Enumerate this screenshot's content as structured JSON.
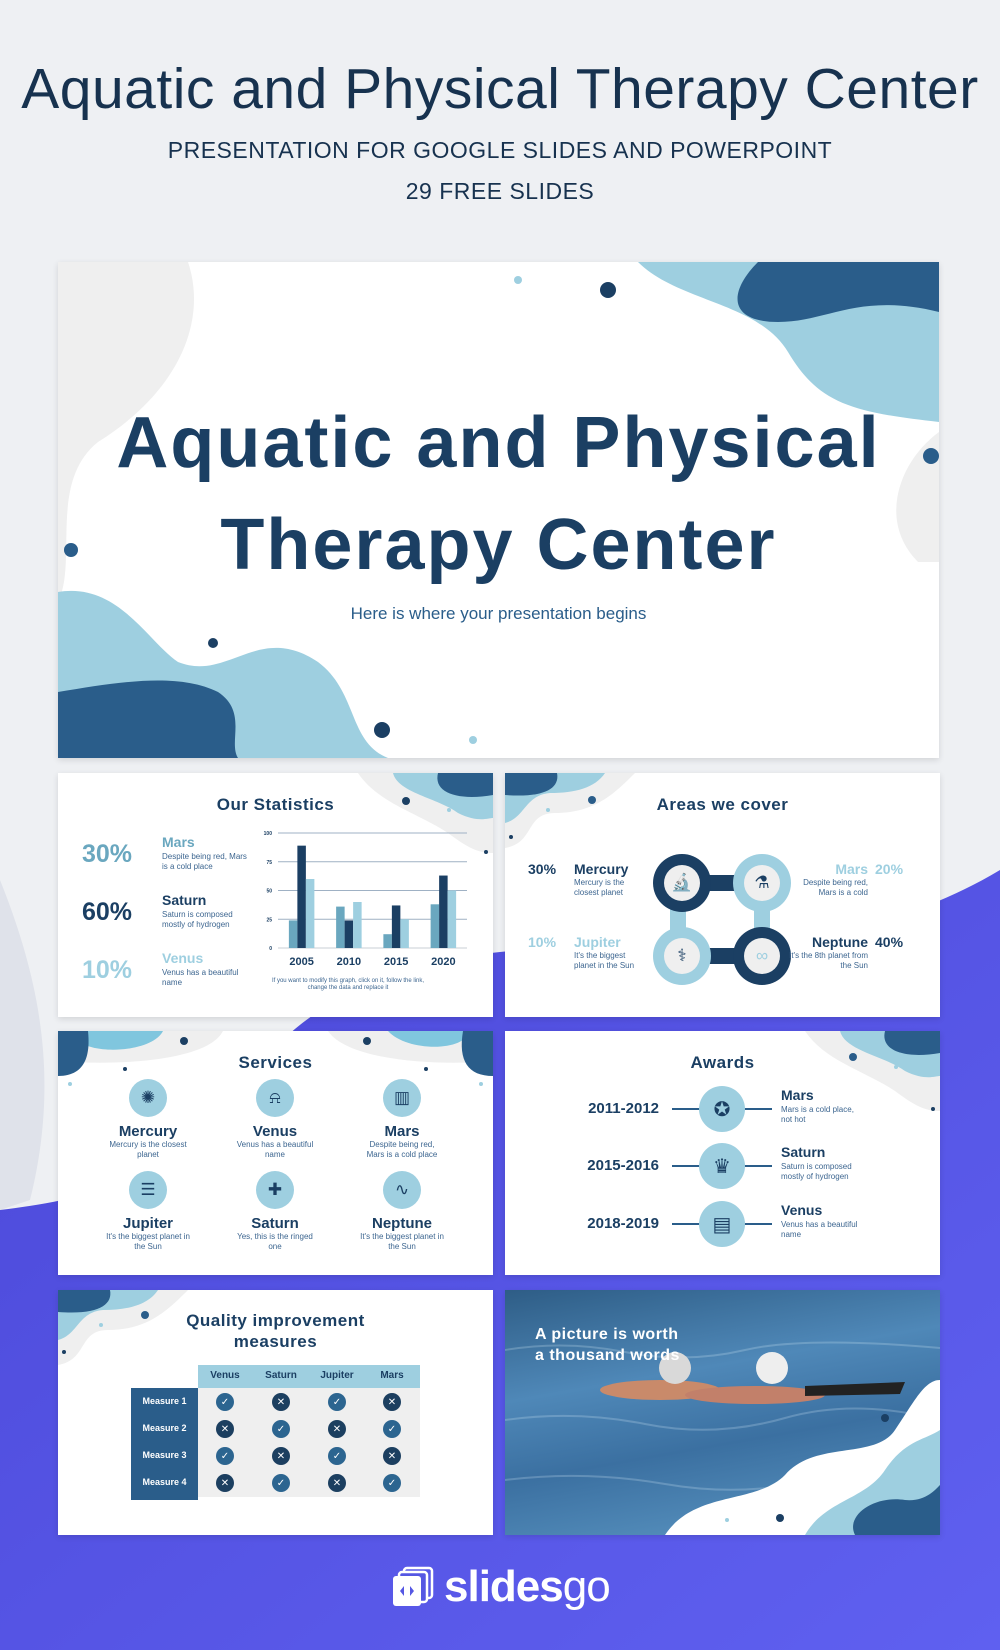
{
  "header": {
    "title": "Aquatic and Physical Therapy Center",
    "subtitle": "PRESENTATION FOR GOOGLE SLIDES AND POWERPOINT",
    "slide_count": "29 FREE SLIDES"
  },
  "colors": {
    "navy": "#1b3f63",
    "mid": "#2a5d8a",
    "teal": "#6aa7bf",
    "light": "#9ecfe0",
    "gray": "#efefef",
    "purple": "#5557e3"
  },
  "cover": {
    "title_line1": "Aquatic and Physical",
    "title_line2": "Therapy Center",
    "subtitle": "Here is where your presentation begins"
  },
  "statistics": {
    "title": "Our Statistics",
    "items": [
      {
        "percent": "30%",
        "name": "Mars",
        "desc": "Despite being red, Mars is a cold place",
        "color": "#6aa7bf"
      },
      {
        "percent": "60%",
        "name": "Saturn",
        "desc": "Saturn is composed mostly of hydrogen",
        "color": "#1b3f63"
      },
      {
        "percent": "10%",
        "name": "Venus",
        "desc": "Venus has a beautiful name",
        "color": "#9ecfe0"
      }
    ],
    "footnote": "If you want to modify this graph, click on it, follow the link, change the data and replace it"
  },
  "chart_data": {
    "type": "bar",
    "categories": [
      "2005",
      "2010",
      "2015",
      "2020"
    ],
    "series": [
      {
        "values": [
          24,
          36,
          12,
          38
        ],
        "color": "#6aa7bf"
      },
      {
        "values": [
          89,
          24,
          37,
          63
        ],
        "color": "#1b3f63"
      },
      {
        "values": [
          60,
          40,
          25,
          50
        ],
        "color": "#9ecfe0"
      }
    ],
    "yticks": [
      0,
      25,
      50,
      75,
      100
    ],
    "ylim": [
      0,
      100
    ],
    "grid": true
  },
  "areas": {
    "title": "Areas we cover",
    "items": [
      {
        "percent": "30%",
        "name": "Mercury",
        "desc": "Mercury is the closest planet",
        "icon": "microscope-icon"
      },
      {
        "percent": "20%",
        "name": "Mars",
        "desc": "Despite being red, Mars is a cold",
        "icon": "mortar-pestle-icon"
      },
      {
        "percent": "10%",
        "name": "Jupiter",
        "desc": "It's the biggest planet in the Sun",
        "icon": "caduceus-icon"
      },
      {
        "percent": "40%",
        "name": "Neptune",
        "desc": "It's the 8th planet from the Sun",
        "icon": "dna-icon"
      }
    ]
  },
  "services": {
    "title": "Services",
    "items": [
      {
        "name": "Mercury",
        "desc": "Mercury is the closest planet",
        "icon": "brain-icon"
      },
      {
        "name": "Venus",
        "desc": "Venus has a beautiful name",
        "icon": "siren-icon"
      },
      {
        "name": "Mars",
        "desc": "Despite being red, Mars is a cold place",
        "icon": "pill-bottle-icon"
      },
      {
        "name": "Jupiter",
        "desc": "It's the biggest planet in the Sun",
        "icon": "xray-icon"
      },
      {
        "name": "Saturn",
        "desc": "Yes, this is the ringed one",
        "icon": "medical-book-icon"
      },
      {
        "name": "Neptune",
        "desc": "It's the biggest planet in the Sun",
        "icon": "heart-monitor-icon"
      }
    ]
  },
  "awards": {
    "title": "Awards",
    "items": [
      {
        "years": "2011-2012",
        "name": "Mars",
        "desc": "Mars is a cold place, not hot",
        "icon": "medal-icon"
      },
      {
        "years": "2015-2016",
        "name": "Saturn",
        "desc": "Saturn is composed mostly of hydrogen",
        "icon": "trophy-icon"
      },
      {
        "years": "2018-2019",
        "name": "Venus",
        "desc": "Venus has a beautiful name",
        "icon": "certificate-icon"
      }
    ]
  },
  "quality": {
    "title_line1": "Quality improvement",
    "title_line2": "measures",
    "columns": [
      "Venus",
      "Saturn",
      "Jupiter",
      "Mars"
    ],
    "rows": [
      {
        "label": "Measure 1",
        "values": [
          true,
          false,
          true,
          false
        ]
      },
      {
        "label": "Measure 2",
        "values": [
          false,
          true,
          false,
          true
        ]
      },
      {
        "label": "Measure 3",
        "values": [
          true,
          false,
          true,
          false
        ]
      },
      {
        "label": "Measure 4",
        "values": [
          false,
          true,
          false,
          true
        ]
      }
    ]
  },
  "picture": {
    "line1": "A picture is worth",
    "line2": "a thousand words"
  },
  "brand": {
    "name_bold": "slides",
    "name_light": "go"
  }
}
